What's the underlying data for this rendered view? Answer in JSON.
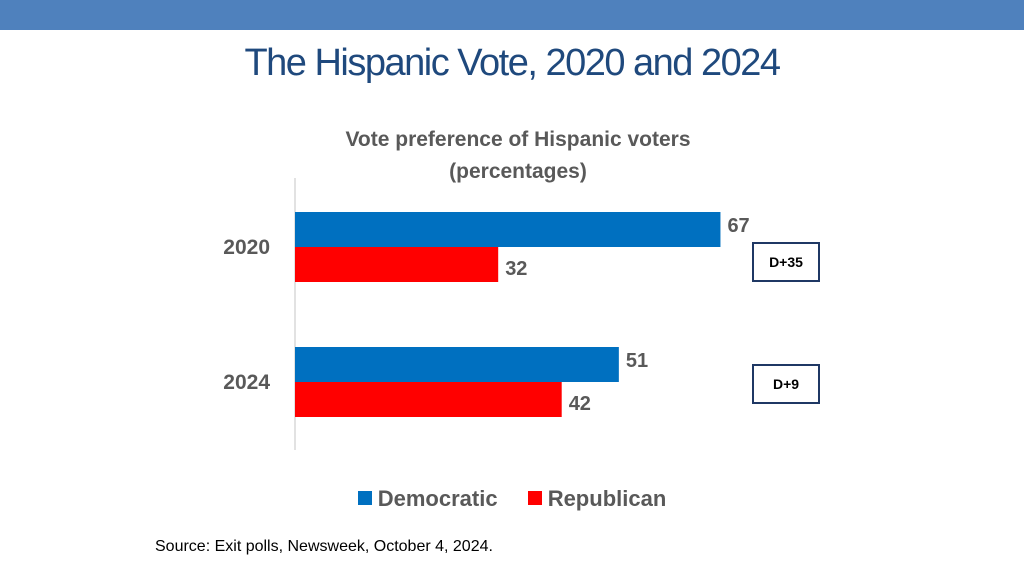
{
  "slide": {
    "title": "The Hispanic Vote, 2020 and 2024",
    "source": "Source: Exit polls,  Newsweek, October 4, 2024."
  },
  "colors": {
    "band": "#4f81bd",
    "title": "#1f497d",
    "democratic": "#0070c0",
    "republican": "#ff0000",
    "label_text": "#595959",
    "axis": "#d9d9d9"
  },
  "differences": [
    {
      "label": "D+35"
    },
    {
      "label": "D+9"
    }
  ],
  "chart_data": {
    "type": "bar",
    "orientation": "horizontal",
    "title": "Vote preference of Hispanic voters",
    "subtitle": "(percentages)",
    "categories": [
      "2020",
      "2024"
    ],
    "series": [
      {
        "name": "Democratic",
        "values": [
          67,
          51
        ]
      },
      {
        "name": "Republican",
        "values": [
          32,
          42
        ]
      }
    ],
    "xlim": [
      0,
      100
    ],
    "grid": false,
    "legend": "bottom-center",
    "data_labels": true
  }
}
